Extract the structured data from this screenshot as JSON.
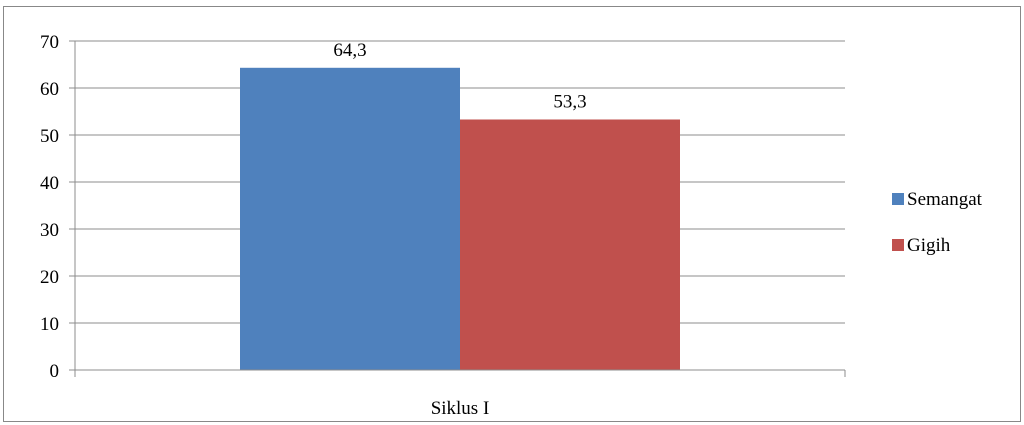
{
  "chart_data": {
    "type": "bar",
    "title": "",
    "xlabel": "",
    "ylabel": "",
    "categories": [
      "Siklus I"
    ],
    "series": [
      {
        "name": "Semangat",
        "values": [
          64.3
        ],
        "value_labels": [
          "64,3"
        ],
        "color": "#4F81BD"
      },
      {
        "name": "Gigih",
        "values": [
          53.3
        ],
        "value_labels": [
          "53,3"
        ],
        "color": "#C0504D"
      }
    ],
    "ylim": [
      0,
      70
    ],
    "yticks": [
      0,
      10,
      20,
      30,
      40,
      50,
      60,
      70
    ],
    "grid": true,
    "legend_position": "right"
  }
}
